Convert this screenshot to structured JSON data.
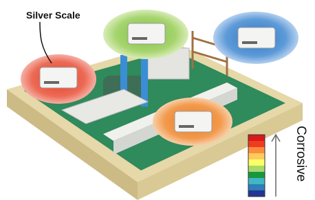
{
  "labels": {
    "device": "Silver Scale",
    "scale": "Corrosive"
  }
}
